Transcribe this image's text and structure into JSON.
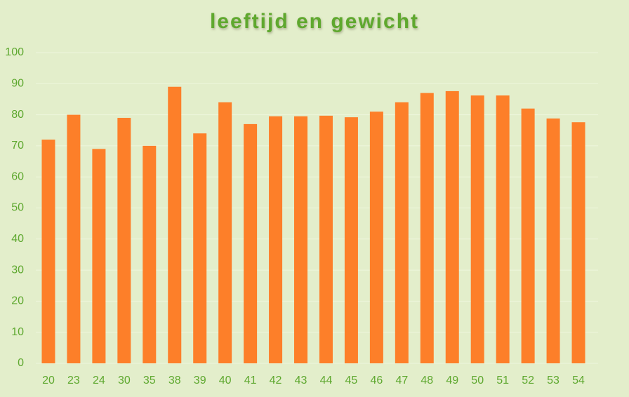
{
  "chart_data": {
    "type": "bar",
    "title": "leeftijd en gewicht",
    "categories": [
      "20",
      "23",
      "24",
      "30",
      "35",
      "38",
      "39",
      "40",
      "41",
      "42",
      "43",
      "44",
      "45",
      "46",
      "47",
      "48",
      "49",
      "50",
      "51",
      "52",
      "53",
      "54"
    ],
    "values": [
      72,
      80,
      69,
      79,
      70,
      89,
      74,
      84,
      77,
      79.5,
      79.5,
      79.7,
      79.2,
      81,
      84,
      87,
      87.6,
      86.2,
      86.2,
      82,
      78.8,
      77.6
    ],
    "color": "#fd7f29",
    "ylim": [
      0,
      100
    ],
    "yticks": [
      0,
      10,
      20,
      30,
      40,
      50,
      60,
      70,
      80,
      90,
      100
    ],
    "grid": true
  }
}
